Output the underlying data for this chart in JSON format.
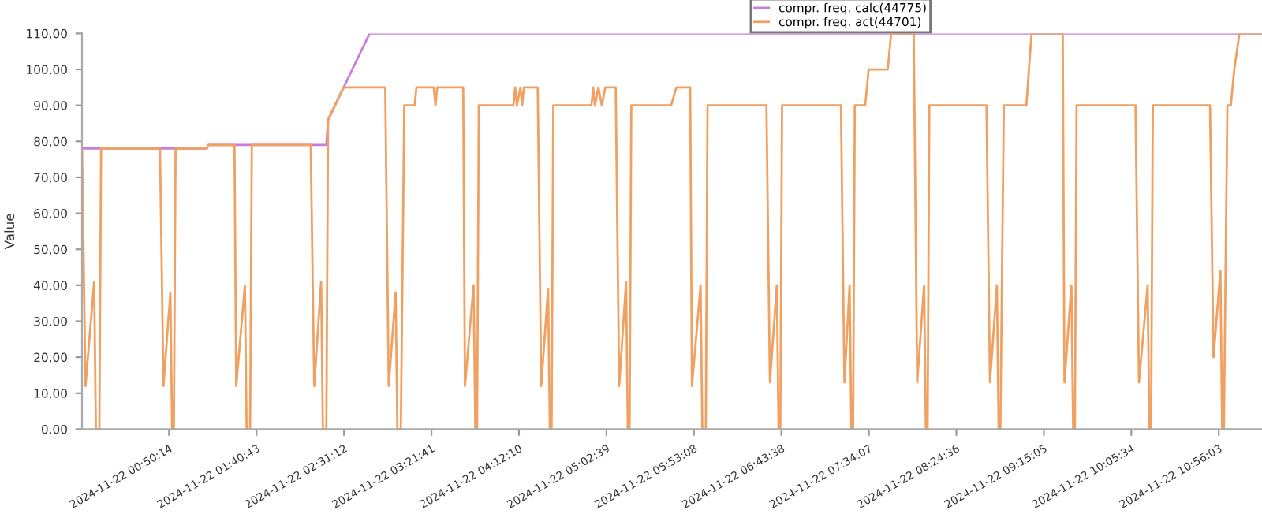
{
  "chart_data": {
    "type": "line",
    "ylabel": "Value",
    "legend": "top right",
    "grid": false,
    "marker": "none",
    "line_style": "solid",
    "xlim": [
      "2024-11-22T00:00",
      "2024-11-22T11:21"
    ],
    "ylim": [
      0,
      110
    ],
    "xticks": [
      {
        "value": "2024-11-22T00:50:14",
        "label": "2024-11-22 00:50:14"
      },
      {
        "value": "2024-11-22T01:40:43",
        "label": "2024-11-22 01:40:43"
      },
      {
        "value": "2024-11-22T02:31:12",
        "label": "2024-11-22 02:31:12"
      },
      {
        "value": "2024-11-22T03:21:41",
        "label": "2024-11-22 03:21:41"
      },
      {
        "value": "2024-11-22T04:12:10",
        "label": "2024-11-22 04:12:10"
      },
      {
        "value": "2024-11-22T05:02:39",
        "label": "2024-11-22 05:02:39"
      },
      {
        "value": "2024-11-22T05:53:08",
        "label": "2024-11-22 05:53:08"
      },
      {
        "value": "2024-11-22T06:43:38",
        "label": "2024-11-22 06:43:38"
      },
      {
        "value": "2024-11-22T07:34:07",
        "label": "2024-11-22 07:34:07"
      },
      {
        "value": "2024-11-22T08:24:36",
        "label": "2024-11-22 08:24:36"
      },
      {
        "value": "2024-11-22T09:15:05",
        "label": "2024-11-22 09:15:05"
      },
      {
        "value": "2024-11-22T10:05:34",
        "label": "2024-11-22 10:05:34"
      },
      {
        "value": "2024-11-22T10:56:03",
        "label": "2024-11-22 10:56:03"
      }
    ],
    "yticks": [
      {
        "value": 0,
        "label": "0,00"
      },
      {
        "value": 10,
        "label": "10,00"
      },
      {
        "value": 20,
        "label": "20,00"
      },
      {
        "value": 30,
        "label": "30,00"
      },
      {
        "value": 40,
        "label": "40,00"
      },
      {
        "value": 50,
        "label": "50,00"
      },
      {
        "value": 60,
        "label": "60,00"
      },
      {
        "value": 70,
        "label": "70,00"
      },
      {
        "value": 80,
        "label": "80,00"
      },
      {
        "value": 90,
        "label": "90,00"
      },
      {
        "value": 100,
        "label": "100,00"
      },
      {
        "value": 110,
        "label": "110,00"
      }
    ],
    "series": [
      {
        "name": "compr. freq. calc(44775)",
        "color": "#c77ddb",
        "x": [
          "2024-11-22T00:00",
          "2024-11-22T01:12",
          "2024-11-22T01:13",
          "2024-11-22T02:21",
          "2024-11-22T02:22",
          "2024-11-22T02:46",
          "2024-11-22T11:21"
        ],
        "values": [
          78,
          78,
          79,
          79,
          86,
          110,
          110
        ]
      },
      {
        "name": "compr. freq. act(44701)",
        "color": "#f0a060",
        "x": [
          "2024-11-22T00:00",
          "2024-11-22T00:02",
          "2024-11-22T00:07",
          "2024-11-22T00:08",
          "2024-11-22T00:10",
          "2024-11-22T00:11",
          "2024-11-22T00:45",
          "2024-11-22T00:47",
          "2024-11-22T00:51",
          "2024-11-22T00:52",
          "2024-11-22T00:53",
          "2024-11-22T00:54",
          "2024-11-22T01:12",
          "2024-11-22T01:13",
          "2024-11-22T01:28",
          "2024-11-22T01:29",
          "2024-11-22T01:34",
          "2024-11-22T01:35",
          "2024-11-22T01:37",
          "2024-11-22T01:38",
          "2024-11-22T02:12",
          "2024-11-22T02:14",
          "2024-11-22T02:18",
          "2024-11-22T02:19",
          "2024-11-22T02:21",
          "2024-11-22T02:22",
          "2024-11-22T02:31",
          "2024-11-22T02:55",
          "2024-11-22T02:57",
          "2024-11-22T03:01",
          "2024-11-22T03:02",
          "2024-11-22T03:04",
          "2024-11-22T03:06",
          "2024-11-22T03:12",
          "2024-11-22T03:13",
          "2024-11-22T03:23",
          "2024-11-22T03:24",
          "2024-11-22T03:25",
          "2024-11-22T03:40",
          "2024-11-22T03:41",
          "2024-11-22T03:46",
          "2024-11-22T03:47",
          "2024-11-22T03:48",
          "2024-11-22T03:49",
          "2024-11-22T04:09",
          "2024-11-22T04:10",
          "2024-11-22T04:11",
          "2024-11-22T04:13",
          "2024-11-22T04:14",
          "2024-11-22T04:15",
          "2024-11-22T04:23",
          "2024-11-22T04:25",
          "2024-11-22T04:29",
          "2024-11-22T04:30",
          "2024-11-22T04:31",
          "2024-11-22T04:32",
          "2024-11-22T04:54",
          "2024-11-22T04:55",
          "2024-11-22T04:56",
          "2024-11-22T04:58",
          "2024-11-22T05:00",
          "2024-11-22T05:02",
          "2024-11-22T05:08",
          "2024-11-22T05:10",
          "2024-11-22T05:14",
          "2024-11-22T05:15",
          "2024-11-22T05:16",
          "2024-11-22T05:17",
          "2024-11-22T05:40",
          "2024-11-22T05:43",
          "2024-11-22T05:51",
          "2024-11-22T05:52",
          "2024-11-22T05:57",
          "2024-11-22T05:58",
          "2024-11-22T06:00",
          "2024-11-22T06:01",
          "2024-11-22T06:35",
          "2024-11-22T06:37",
          "2024-11-22T06:41",
          "2024-11-22T06:42",
          "2024-11-22T06:43",
          "2024-11-22T06:44",
          "2024-11-22T07:18",
          "2024-11-22T07:20",
          "2024-11-22T07:23",
          "2024-11-22T07:24",
          "2024-11-22T07:25",
          "2024-11-22T07:26",
          "2024-11-22T07:32",
          "2024-11-22T07:34",
          "2024-11-22T07:45",
          "2024-11-22T07:47",
          "2024-11-22T08:00",
          "2024-11-22T08:02",
          "2024-11-22T08:06",
          "2024-11-22T08:07",
          "2024-11-22T08:08",
          "2024-11-22T08:09",
          "2024-11-22T08:42",
          "2024-11-22T08:44",
          "2024-11-22T08:48",
          "2024-11-22T08:49",
          "2024-11-22T08:50",
          "2024-11-22T08:52",
          "2024-11-22T09:05",
          "2024-11-22T09:08",
          "2024-11-22T09:26",
          "2024-11-22T09:27",
          "2024-11-22T09:31",
          "2024-11-22T09:32",
          "2024-11-22T09:33",
          "2024-11-22T09:34",
          "2024-11-22T10:08",
          "2024-11-22T10:10",
          "2024-11-22T10:15",
          "2024-11-22T10:16",
          "2024-11-22T10:17",
          "2024-11-22T10:18",
          "2024-11-22T10:51",
          "2024-11-22T10:53",
          "2024-11-22T10:57",
          "2024-11-22T10:58",
          "2024-11-22T10:59",
          "2024-11-22T11:01",
          "2024-11-22T11:03",
          "2024-11-22T11:05",
          "2024-11-22T11:08",
          "2024-11-22T11:21"
        ],
        "values": [
          78,
          12,
          41,
          0,
          0,
          78,
          78,
          12,
          38,
          0,
          0,
          78,
          78,
          79,
          79,
          12,
          40,
          0,
          0,
          79,
          79,
          12,
          41,
          0,
          0,
          86,
          95,
          95,
          12,
          38,
          0,
          0,
          90,
          90,
          95,
          95,
          90,
          95,
          95,
          12,
          40,
          0,
          0,
          90,
          90,
          95,
          90,
          95,
          90,
          95,
          95,
          12,
          39,
          0,
          0,
          90,
          90,
          95,
          90,
          95,
          90,
          95,
          95,
          12,
          41,
          0,
          0,
          90,
          90,
          95,
          95,
          12,
          40,
          0,
          0,
          90,
          90,
          13,
          40,
          0,
          0,
          90,
          90,
          13,
          40,
          0,
          0,
          90,
          90,
          100,
          100,
          110,
          110,
          13,
          40,
          0,
          0,
          90,
          90,
          13,
          40,
          0,
          0,
          90,
          90,
          110,
          110,
          13,
          40,
          0,
          0,
          90,
          90,
          13,
          40,
          0,
          0,
          90,
          90,
          20,
          44,
          0,
          0,
          90,
          90,
          100,
          110,
          110
        ]
      }
    ]
  }
}
